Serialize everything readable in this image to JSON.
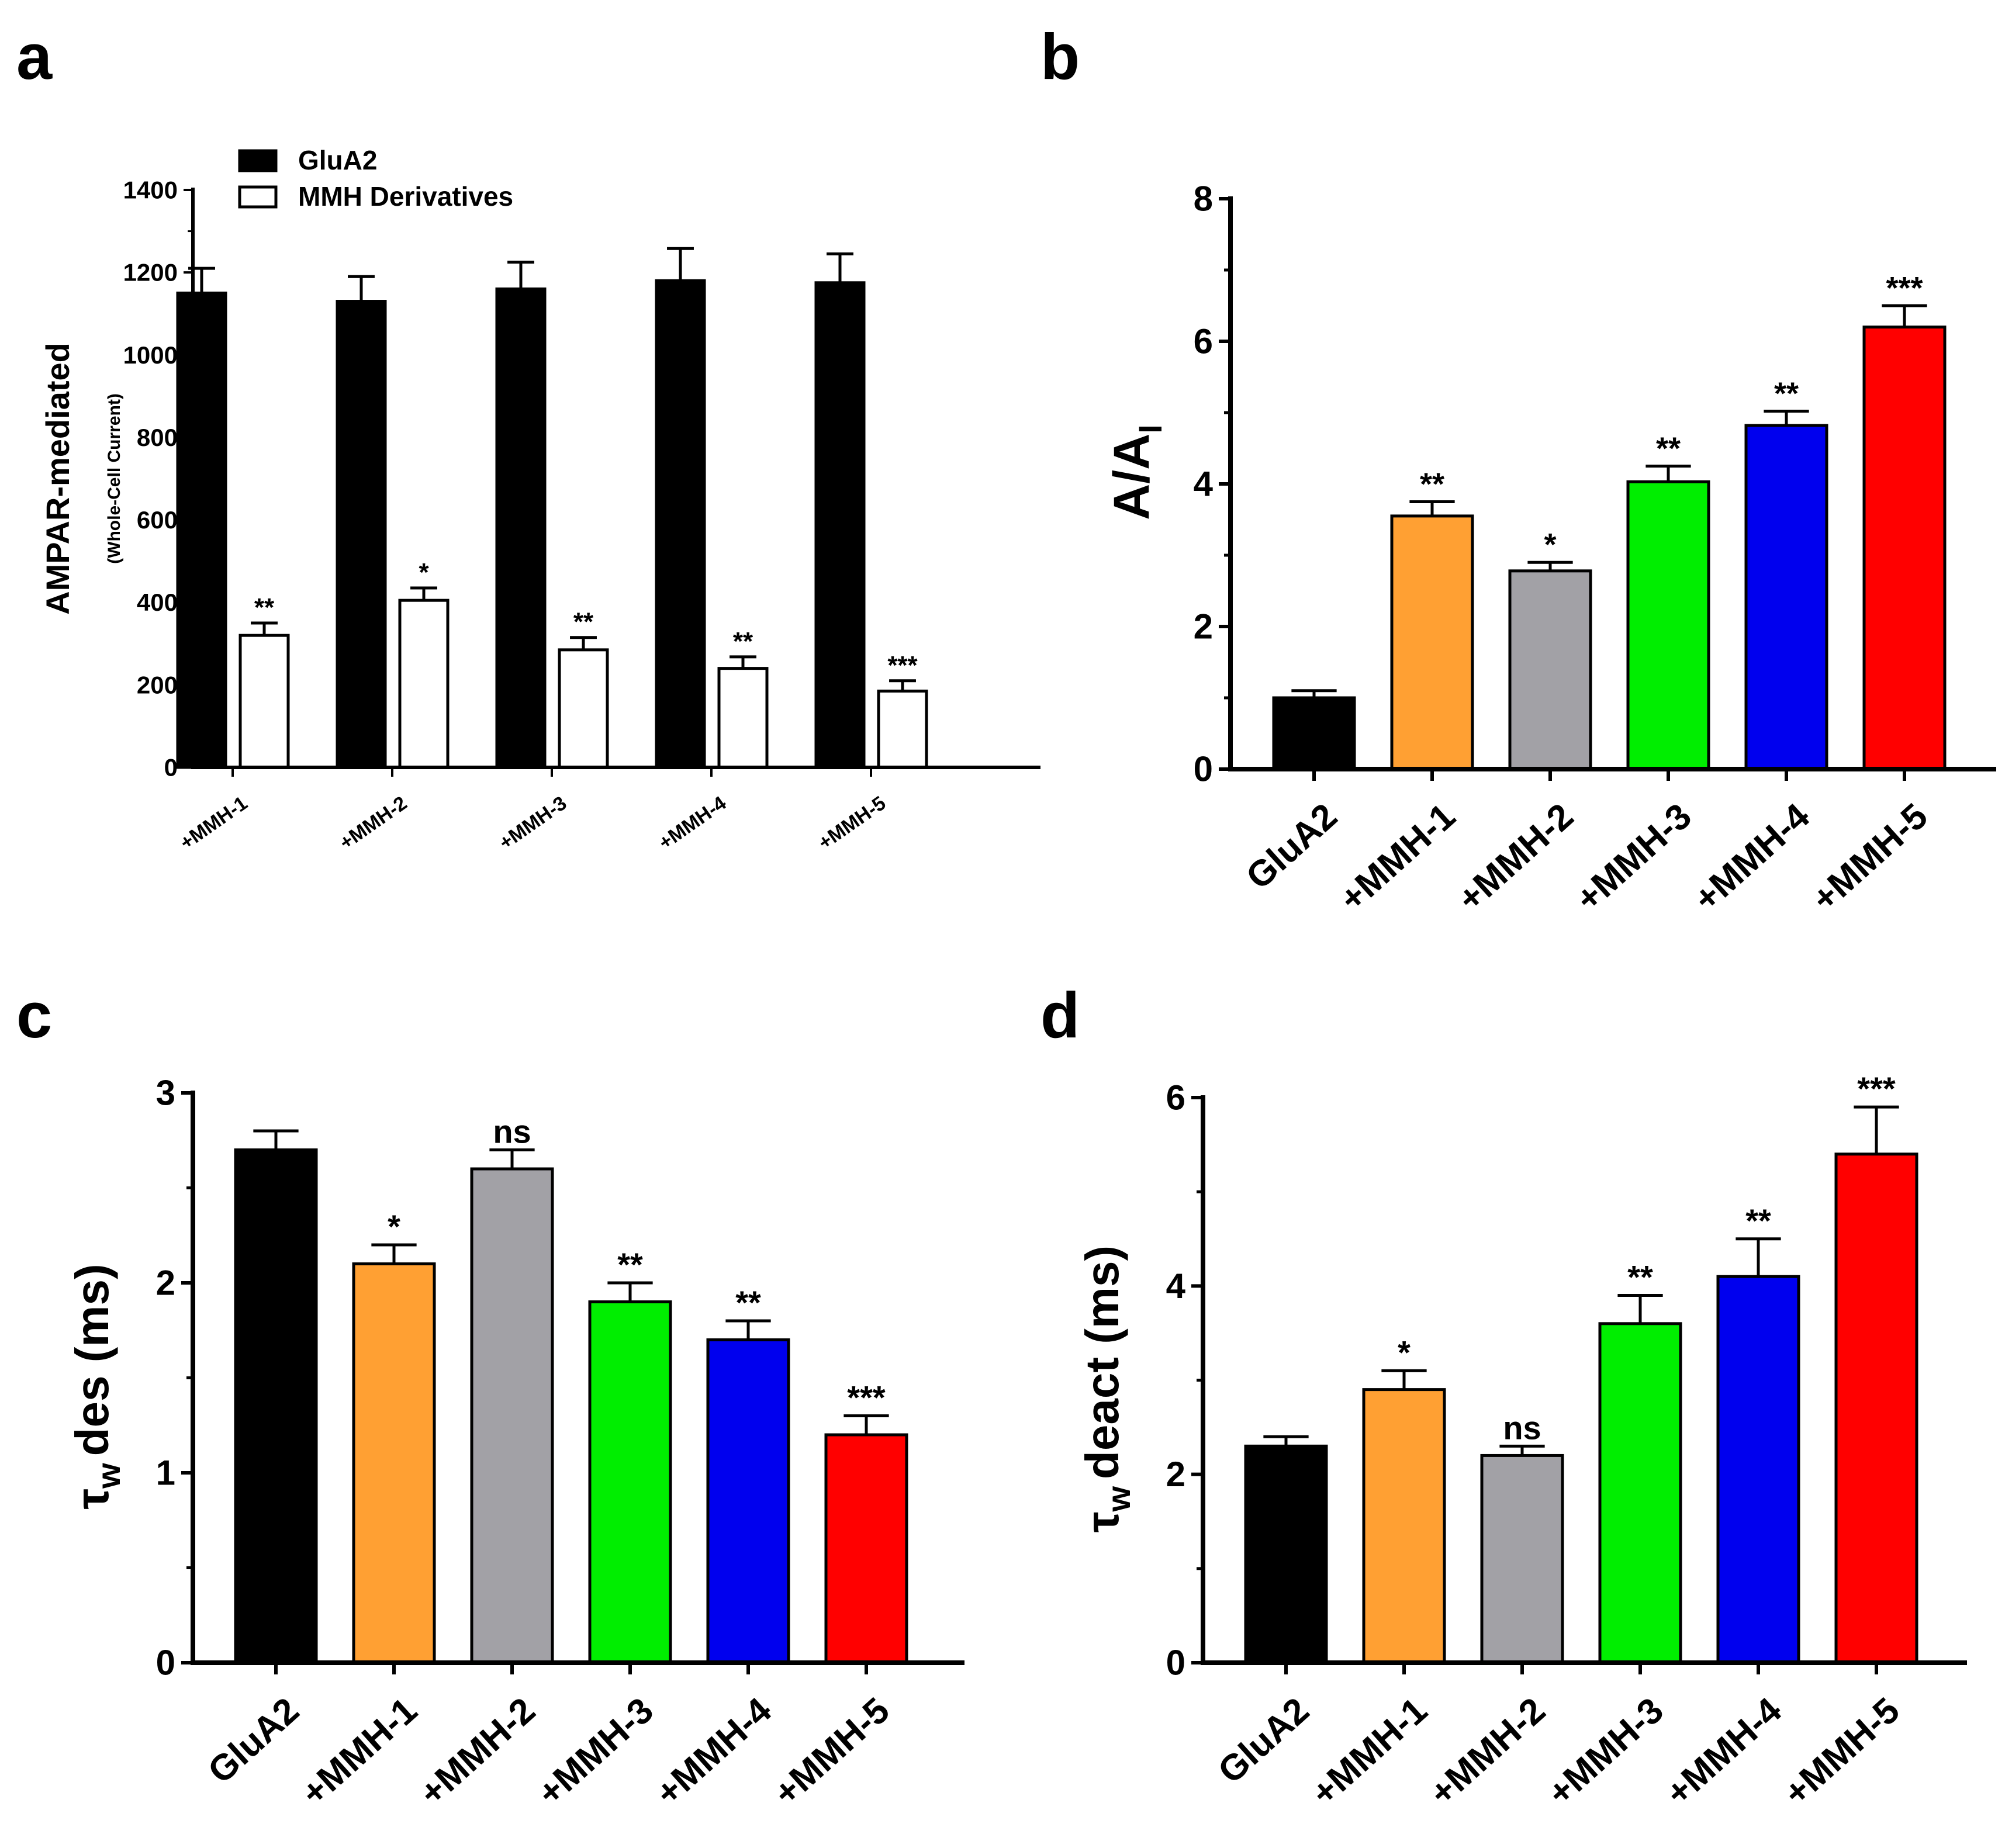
{
  "chart_data": [
    {
      "panel": "a",
      "type": "bar",
      "ylabel": "AMPAR-mediated",
      "ylabel2": "(Whole-Cell Current)",
      "ylim": [
        0,
        1400
      ],
      "yticks": [
        0,
        200,
        400,
        600,
        800,
        1000,
        1200,
        1400
      ],
      "categories": [
        "+MMH-1",
        "+MMH-2",
        "+MMH-3",
        "+MMH-4",
        "+MMH-5"
      ],
      "legend": {
        "position": "top-left",
        "entries": [
          "GluA2",
          "MMH Derivatives"
        ]
      },
      "series": [
        {
          "name": "GluA2",
          "fill": "#000000",
          "values": [
            1150,
            1130,
            1160,
            1180,
            1175
          ],
          "errors": [
            60,
            60,
            65,
            78,
            70
          ],
          "sig": [
            "",
            "",
            "",
            "",
            ""
          ]
        },
        {
          "name": "MMH Derivatives",
          "fill": "#ffffff",
          "values": [
            320,
            405,
            285,
            240,
            185
          ],
          "errors": [
            30,
            30,
            30,
            28,
            25
          ],
          "sig": [
            "**",
            "*",
            "**",
            "**",
            "***"
          ]
        }
      ]
    },
    {
      "panel": "b",
      "type": "bar",
      "ylabel": "A/A",
      "ylabel_sub": "I",
      "ylim": [
        0,
        8
      ],
      "yticks": [
        0,
        2,
        4,
        6,
        8
      ],
      "categories": [
        "GluA2",
        "+MMH-1",
        "+MMH-2",
        "+MMH-3",
        "+MMH-4",
        "+MMH-5"
      ],
      "colors": [
        "#000000",
        "#ffa033",
        "#a2a1a6",
        "#00ee00",
        "#0000ee",
        "#ff0000"
      ],
      "values": [
        1.0,
        3.55,
        2.78,
        4.03,
        4.82,
        6.2
      ],
      "errors": [
        0.1,
        0.2,
        0.12,
        0.22,
        0.2,
        0.3
      ],
      "sig": [
        "",
        "**",
        "*",
        "**",
        "**",
        "***"
      ]
    },
    {
      "panel": "c",
      "type": "bar",
      "ylabel": "des (ms)",
      "ylabel_symbol": "τ",
      "ylabel_sub": "w",
      "ylim": [
        0,
        3
      ],
      "yticks": [
        0,
        1,
        2,
        3
      ],
      "categories": [
        "GluA2",
        "+MMH-1",
        "+MMH-2",
        "+MMH-3",
        "+MMH-4",
        "+MMH-5"
      ],
      "colors": [
        "#000000",
        "#ffa033",
        "#a2a1a6",
        "#00ee00",
        "#0000ee",
        "#ff0000"
      ],
      "values": [
        2.7,
        2.1,
        2.6,
        1.9,
        1.7,
        1.2
      ],
      "errors": [
        0.1,
        0.1,
        0.1,
        0.1,
        0.1,
        0.1
      ],
      "sig": [
        "",
        "*",
        "ns",
        "**",
        "**",
        "***"
      ]
    },
    {
      "panel": "d",
      "type": "bar",
      "ylabel": "deact (ms)",
      "ylabel_symbol": "τ",
      "ylabel_sub": "w",
      "ylim": [
        0,
        6
      ],
      "yticks": [
        0,
        2,
        4,
        6
      ],
      "categories": [
        "GluA2",
        "+MMH-1",
        "+MMH-2",
        "+MMH-3",
        "+MMH-4",
        "+MMH-5"
      ],
      "colors": [
        "#000000",
        "#ffa033",
        "#a2a1a6",
        "#00ee00",
        "#0000ee",
        "#ff0000"
      ],
      "values": [
        2.3,
        2.9,
        2.2,
        3.6,
        4.1,
        5.4
      ],
      "errors": [
        0.1,
        0.2,
        0.1,
        0.3,
        0.4,
        0.5
      ],
      "sig": [
        "",
        "*",
        "ns",
        "**",
        "**",
        "***"
      ]
    }
  ]
}
